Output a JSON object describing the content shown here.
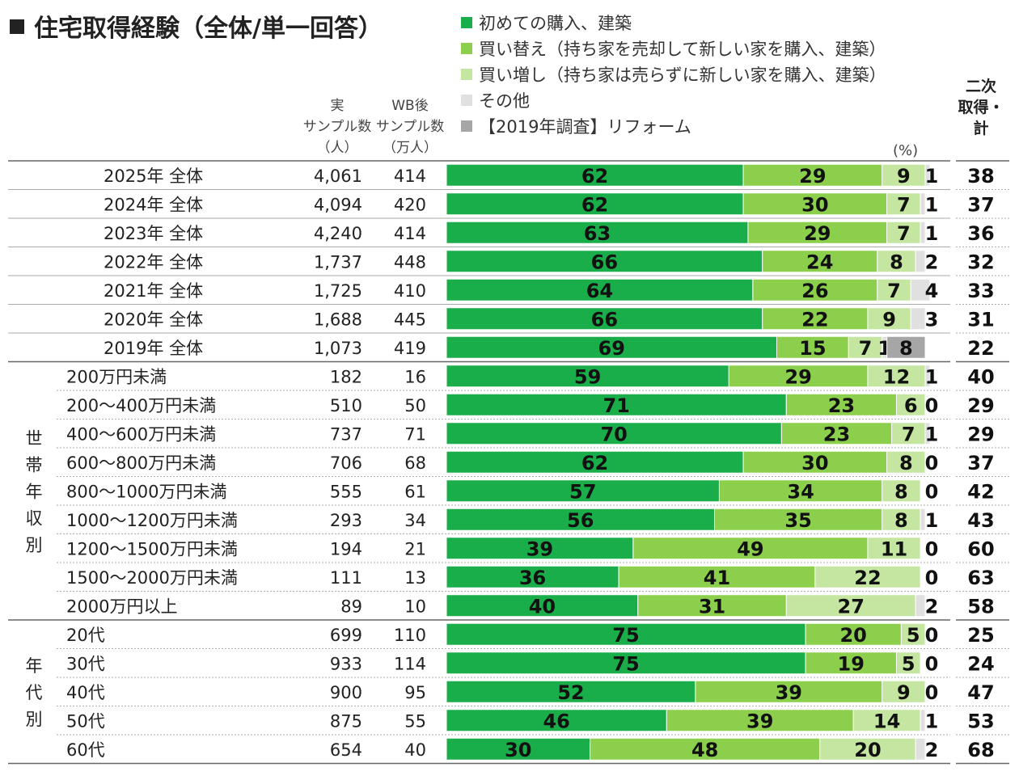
{
  "title": "住宅取得経験（全体/単一回答）",
  "unit": "(%)",
  "columns": {
    "sample": "実\nサンプル数\n（人）",
    "wb": "WB後\nサンプル数\n（万人）",
    "secondary": "二次\n取得・\n計"
  },
  "colors": {
    "first": "#1aae4a",
    "replace": "#8ccf4c",
    "additional": "#c4e6a0",
    "other": "#e0e0e0",
    "reform": "#a6a6a6"
  },
  "chart_data": {
    "type": "bar",
    "stacked": true,
    "orientation": "horizontal",
    "xlim": [
      0,
      100
    ],
    "series": [
      {
        "key": "first",
        "name": "初めての購入、建築"
      },
      {
        "key": "replace",
        "name": "買い替え（持ち家を売却して新しい家を購入、建築）"
      },
      {
        "key": "additional",
        "name": "買い増し（持ち家は売らずに新しい家を購入、建築）"
      },
      {
        "key": "other",
        "name": "その他"
      },
      {
        "key": "reform",
        "name": "【2019年調査】リフォーム"
      }
    ],
    "groups": [
      {
        "label": "",
        "rows": [
          {
            "label": "2025年 全体",
            "sample": "4,061",
            "wb": "414",
            "values": [
              62,
              29,
              9,
              1
            ],
            "secondary": "38"
          },
          {
            "label": "2024年 全体",
            "sample": "4,094",
            "wb": "420",
            "values": [
              62,
              30,
              7,
              1
            ],
            "secondary": "37"
          },
          {
            "label": "2023年 全体",
            "sample": "4,240",
            "wb": "414",
            "values": [
              63,
              29,
              7,
              1
            ],
            "secondary": "36"
          },
          {
            "label": "2022年 全体",
            "sample": "1,737",
            "wb": "448",
            "values": [
              66,
              24,
              8,
              2
            ],
            "secondary": "32"
          },
          {
            "label": "2021年 全体",
            "sample": "1,725",
            "wb": "410",
            "values": [
              64,
              26,
              7,
              4
            ],
            "secondary": "33"
          },
          {
            "label": "2020年 全体",
            "sample": "1,688",
            "wb": "445",
            "values": [
              66,
              22,
              9,
              3
            ],
            "secondary": "31"
          },
          {
            "label": "2019年 全体",
            "sample": "1,073",
            "wb": "419",
            "values": [
              69,
              15,
              7,
              1,
              8
            ],
            "secondary": "22"
          }
        ]
      },
      {
        "label": "世帯年収別",
        "rows": [
          {
            "label": "200万円未満",
            "sample": "182",
            "wb": "16",
            "values": [
              59,
              29,
              12,
              1
            ],
            "secondary": "40"
          },
          {
            "label": "200～400万円未満",
            "sample": "510",
            "wb": "50",
            "values": [
              71,
              23,
              6,
              0
            ],
            "secondary": "29"
          },
          {
            "label": "400～600万円未満",
            "sample": "737",
            "wb": "71",
            "values": [
              70,
              23,
              7,
              1
            ],
            "secondary": "29"
          },
          {
            "label": "600～800万円未満",
            "sample": "706",
            "wb": "68",
            "values": [
              62,
              30,
              8,
              0
            ],
            "secondary": "37"
          },
          {
            "label": "800～1000万円未満",
            "sample": "555",
            "wb": "61",
            "values": [
              57,
              34,
              8,
              0
            ],
            "secondary": "42"
          },
          {
            "label": "1000～1200万円未満",
            "sample": "293",
            "wb": "34",
            "values": [
              56,
              35,
              8,
              1
            ],
            "secondary": "43"
          },
          {
            "label": "1200～1500万円未満",
            "sample": "194",
            "wb": "21",
            "values": [
              39,
              49,
              11,
              0
            ],
            "secondary": "60"
          },
          {
            "label": "1500～2000万円未満",
            "sample": "111",
            "wb": "13",
            "values": [
              36,
              41,
              22,
              0
            ],
            "secondary": "63"
          },
          {
            "label": "2000万円以上",
            "sample": "89",
            "wb": "10",
            "values": [
              40,
              31,
              27,
              2
            ],
            "secondary": "58"
          }
        ]
      },
      {
        "label": "年代別",
        "rows": [
          {
            "label": "20代",
            "sample": "699",
            "wb": "110",
            "values": [
              75,
              20,
              5,
              0
            ],
            "secondary": "25"
          },
          {
            "label": "30代",
            "sample": "933",
            "wb": "114",
            "values": [
              75,
              19,
              5,
              0
            ],
            "secondary": "24"
          },
          {
            "label": "40代",
            "sample": "900",
            "wb": "95",
            "values": [
              52,
              39,
              9,
              0
            ],
            "secondary": "47"
          },
          {
            "label": "50代",
            "sample": "875",
            "wb": "55",
            "values": [
              46,
              39,
              14,
              1
            ],
            "secondary": "53"
          },
          {
            "label": "60代",
            "sample": "654",
            "wb": "40",
            "values": [
              30,
              48,
              20,
              2
            ],
            "secondary": "68"
          }
        ]
      }
    ]
  }
}
